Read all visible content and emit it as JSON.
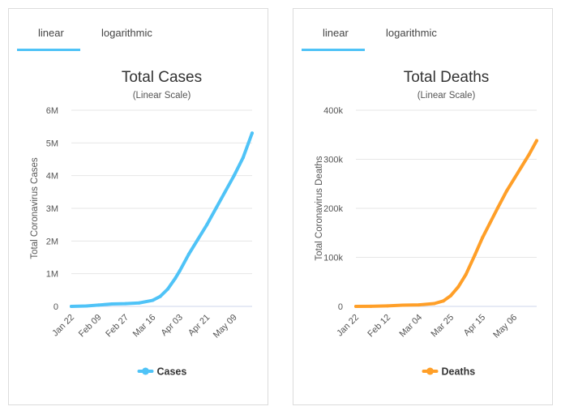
{
  "panels": [
    {
      "tabs": {
        "linear": "linear",
        "logarithmic": "logarithmic",
        "active": "linear"
      }
    },
    {
      "tabs": {
        "linear": "linear",
        "logarithmic": "logarithmic",
        "active": "linear"
      }
    }
  ],
  "chart_data": [
    {
      "type": "line",
      "title": "Total Cases",
      "subtitle": "(Linear Scale)",
      "ylabel": "Total Coronavirus Cases",
      "xlabel": "",
      "x_tick_labels": [
        "Jan 22",
        "Feb 09",
        "Feb 27",
        "Mar 16",
        "Apr 03",
        "Apr 21",
        "May 09"
      ],
      "y_ticks": [
        0,
        1000000,
        2000000,
        3000000,
        4000000,
        5000000,
        6000000
      ],
      "y_tick_labels": [
        "0",
        "1M",
        "2M",
        "3M",
        "4M",
        "5M",
        "6M"
      ],
      "ylim": [
        0,
        6000000
      ],
      "x_range": [
        "2020-01-22",
        "2020-05-21"
      ],
      "grid": true,
      "legend": "bottom-center",
      "color": "#4fc3f7",
      "series": [
        {
          "name": "Cases",
          "x": [
            "2020-01-22",
            "2020-02-01",
            "2020-02-09",
            "2020-02-18",
            "2020-02-27",
            "2020-03-07",
            "2020-03-16",
            "2020-03-21",
            "2020-03-26",
            "2020-03-31",
            "2020-04-03",
            "2020-04-09",
            "2020-04-15",
            "2020-04-21",
            "2020-04-27",
            "2020-05-03",
            "2020-05-09",
            "2020-05-15",
            "2020-05-21"
          ],
          "y": [
            555,
            12000,
            40000,
            75000,
            83000,
            105000,
            185000,
            305000,
            530000,
            860000,
            1090000,
            1600000,
            2050000,
            2500000,
            3000000,
            3500000,
            4000000,
            4550000,
            5300000
          ]
        }
      ]
    },
    {
      "type": "line",
      "title": "Total Deaths",
      "subtitle": "(Linear Scale)",
      "ylabel": "Total Coronavirus Deaths",
      "xlabel": "",
      "x_tick_labels": [
        "Jan 22",
        "Feb 12",
        "Mar 04",
        "Mar 25",
        "Apr 15",
        "May 06"
      ],
      "y_ticks": [
        0,
        100000,
        200000,
        300000,
        400000
      ],
      "y_tick_labels": [
        "0",
        "100k",
        "200k",
        "300k",
        "400k"
      ],
      "ylim": [
        0,
        400000
      ],
      "x_range": [
        "2020-01-22",
        "2020-05-21"
      ],
      "grid": true,
      "legend": "bottom-center",
      "color": "#ff9f28",
      "series": [
        {
          "name": "Deaths",
          "x": [
            "2020-01-22",
            "2020-02-01",
            "2020-02-12",
            "2020-02-22",
            "2020-03-04",
            "2020-03-14",
            "2020-03-20",
            "2020-03-25",
            "2020-03-30",
            "2020-04-04",
            "2020-04-10",
            "2020-04-15",
            "2020-04-20",
            "2020-04-25",
            "2020-05-01",
            "2020-05-06",
            "2020-05-11",
            "2020-05-16",
            "2020-05-21"
          ],
          "y": [
            17,
            260,
            1100,
            2400,
            3200,
            5800,
            11000,
            22000,
            40000,
            65000,
            105000,
            140000,
            170000,
            200000,
            235000,
            260000,
            285000,
            310000,
            338000
          ]
        }
      ]
    }
  ]
}
